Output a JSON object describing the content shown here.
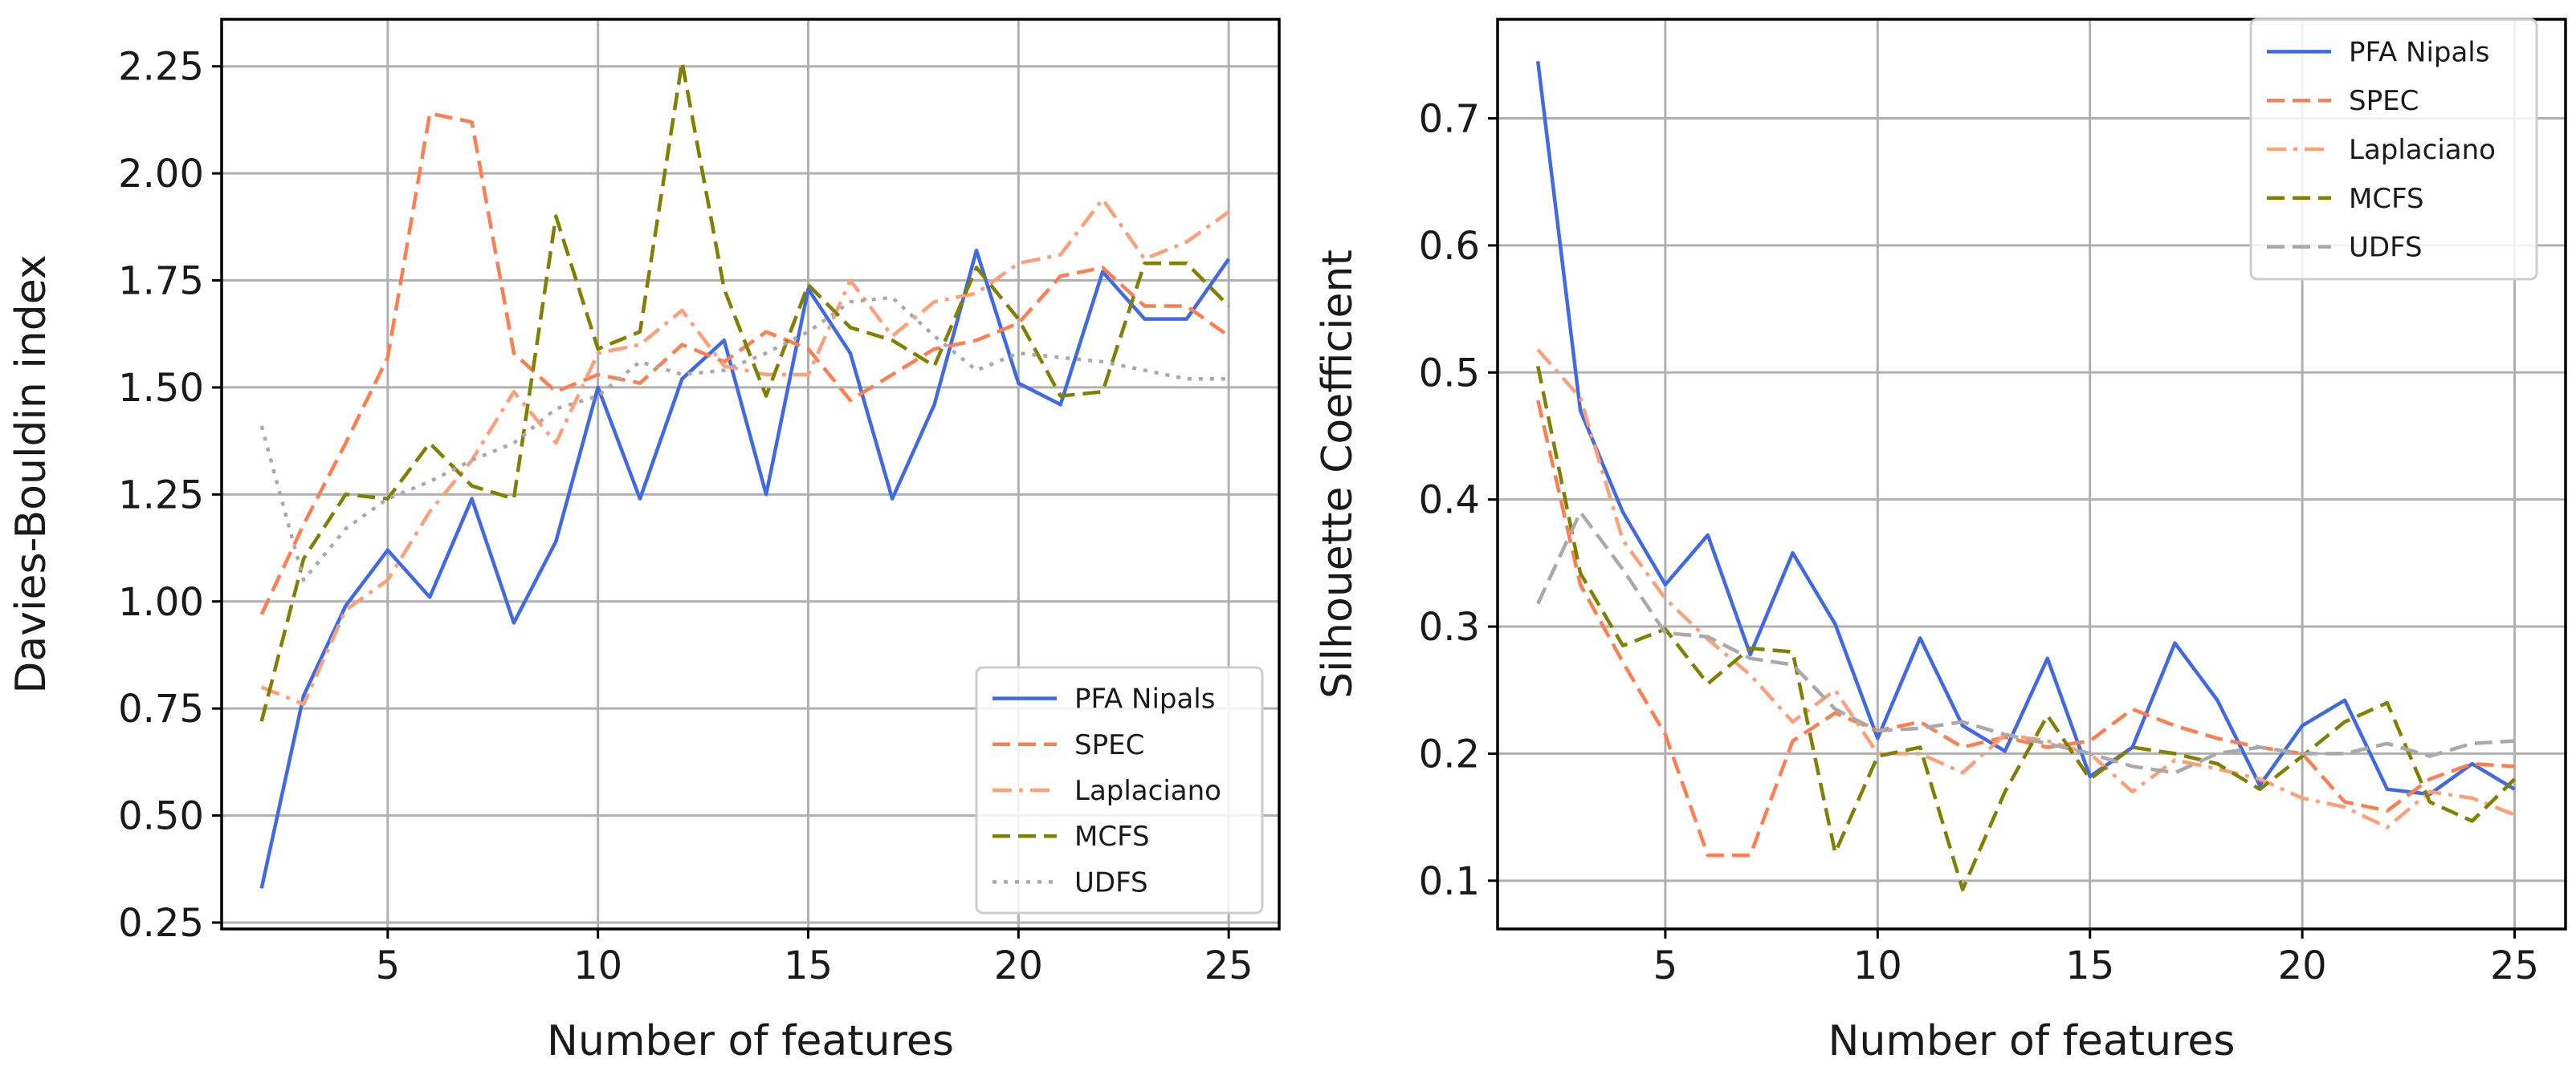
{
  "chart_data": [
    {
      "type": "line",
      "xlabel": "Number of features",
      "ylabel": "Davies-Bouldin index",
      "xlim": [
        1.05,
        26.2
      ],
      "ylim": [
        0.235,
        2.36
      ],
      "xticks": [
        5,
        10,
        15,
        20,
        25
      ],
      "yticks": [
        0.25,
        0.5,
        0.75,
        1.0,
        1.25,
        1.5,
        1.75,
        2.0,
        2.25
      ],
      "ytick_labels": [
        "0.25",
        "0.50",
        "0.75",
        "1.00",
        "1.25",
        "1.50",
        "1.75",
        "2.00",
        "2.25"
      ],
      "grid": true,
      "legend_location": "lower-right",
      "x": [
        2,
        3,
        4,
        5,
        6,
        7,
        8,
        9,
        10,
        11,
        12,
        13,
        14,
        15,
        16,
        17,
        18,
        19,
        20,
        21,
        22,
        23,
        24,
        25
      ],
      "series": [
        {
          "name": "PFA Nipals",
          "color": "#4169e1",
          "style": "solid",
          "values": [
            0.33,
            0.78,
            0.99,
            1.12,
            1.01,
            1.24,
            0.95,
            1.14,
            1.5,
            1.24,
            1.52,
            1.61,
            1.25,
            1.73,
            1.58,
            1.24,
            1.46,
            1.82,
            1.51,
            1.46,
            1.77,
            1.66,
            1.66,
            1.8
          ]
        },
        {
          "name": "SPEC",
          "color": "#ff7f50",
          "style": "dashed",
          "values": [
            0.97,
            1.18,
            1.37,
            1.57,
            2.14,
            2.12,
            1.58,
            1.49,
            1.53,
            1.51,
            1.6,
            1.56,
            1.63,
            1.59,
            1.47,
            1.53,
            1.59,
            1.61,
            1.65,
            1.76,
            1.78,
            1.69,
            1.69,
            1.62
          ]
        },
        {
          "name": "Laplaciano",
          "color": "#ffa07a",
          "style": "dashdot",
          "values": [
            0.8,
            0.76,
            0.98,
            1.05,
            1.21,
            1.33,
            1.49,
            1.37,
            1.58,
            1.6,
            1.68,
            1.55,
            1.53,
            1.53,
            1.75,
            1.62,
            1.7,
            1.72,
            1.79,
            1.81,
            1.94,
            1.8,
            1.84,
            1.91
          ]
        },
        {
          "name": "MCFS",
          "color": "#808000",
          "style": "dashed",
          "values": [
            0.72,
            1.1,
            1.25,
            1.24,
            1.37,
            1.27,
            1.24,
            1.9,
            1.59,
            1.63,
            2.26,
            1.73,
            1.48,
            1.74,
            1.64,
            1.61,
            1.55,
            1.78,
            1.66,
            1.48,
            1.49,
            1.79,
            1.79,
            1.69
          ]
        },
        {
          "name": "UDFS",
          "color": "#a9a9a9",
          "style": "dotted",
          "values": [
            1.41,
            1.05,
            1.17,
            1.24,
            1.28,
            1.33,
            1.37,
            1.45,
            1.48,
            1.56,
            1.53,
            1.54,
            1.58,
            1.63,
            1.7,
            1.71,
            1.62,
            1.54,
            1.58,
            1.57,
            1.56,
            1.54,
            1.52,
            1.52
          ]
        }
      ]
    },
    {
      "type": "line",
      "xlabel": "Number of features",
      "ylabel": "Silhouette Coefficient",
      "xlim": [
        1.05,
        26.2
      ],
      "ylim": [
        0.062,
        0.778
      ],
      "xticks": [
        5,
        10,
        15,
        20,
        25
      ],
      "yticks": [
        0.1,
        0.2,
        0.3,
        0.4,
        0.5,
        0.6,
        0.7
      ],
      "ytick_labels": [
        "0.1",
        "0.2",
        "0.3",
        "0.4",
        "0.5",
        "0.6",
        "0.7"
      ],
      "grid": true,
      "legend_location": "upper-right",
      "x": [
        2,
        3,
        4,
        5,
        6,
        7,
        8,
        9,
        10,
        11,
        12,
        13,
        14,
        15,
        16,
        17,
        18,
        19,
        20,
        21,
        22,
        23,
        24,
        25
      ],
      "series": [
        {
          "name": "PFA Nipals",
          "color": "#4169e1",
          "style": "solid",
          "values": [
            0.745,
            0.47,
            0.39,
            0.333,
            0.372,
            0.278,
            0.358,
            0.302,
            0.212,
            0.291,
            0.222,
            0.202,
            0.275,
            0.182,
            0.205,
            0.287,
            0.242,
            0.175,
            0.222,
            0.242,
            0.172,
            0.168,
            0.192,
            0.172
          ]
        },
        {
          "name": "SPEC",
          "color": "#ff7f50",
          "style": "dashed",
          "values": [
            0.478,
            0.333,
            0.272,
            0.215,
            0.12,
            0.12,
            0.21,
            0.232,
            0.218,
            0.225,
            0.205,
            0.213,
            0.205,
            0.21,
            0.235,
            0.222,
            0.212,
            0.205,
            0.2,
            0.162,
            0.155,
            0.18,
            0.192,
            0.19
          ]
        },
        {
          "name": "Laplaciano",
          "color": "#ffa07a",
          "style": "dashdot",
          "values": [
            0.518,
            0.48,
            0.368,
            0.322,
            0.29,
            0.262,
            0.225,
            0.25,
            0.2,
            0.2,
            0.185,
            0.215,
            0.21,
            0.2,
            0.17,
            0.195,
            0.188,
            0.18,
            0.165,
            0.158,
            0.142,
            0.17,
            0.165,
            0.152
          ]
        },
        {
          "name": "MCFS",
          "color": "#808000",
          "style": "dashed",
          "values": [
            0.505,
            0.342,
            0.285,
            0.298,
            0.255,
            0.283,
            0.28,
            0.122,
            0.198,
            0.205,
            0.093,
            0.17,
            0.23,
            0.18,
            0.205,
            0.2,
            0.192,
            0.172,
            0.198,
            0.225,
            0.24,
            0.162,
            0.147,
            0.18
          ]
        },
        {
          "name": "UDFS",
          "color": "#a9a9a9",
          "style": "dashed",
          "values": [
            0.318,
            0.39,
            0.345,
            0.295,
            0.292,
            0.275,
            0.27,
            0.235,
            0.218,
            0.22,
            0.225,
            0.215,
            0.208,
            0.2,
            0.19,
            0.185,
            0.2,
            0.205,
            0.2,
            0.2,
            0.208,
            0.198,
            0.208,
            0.21
          ]
        }
      ]
    }
  ]
}
